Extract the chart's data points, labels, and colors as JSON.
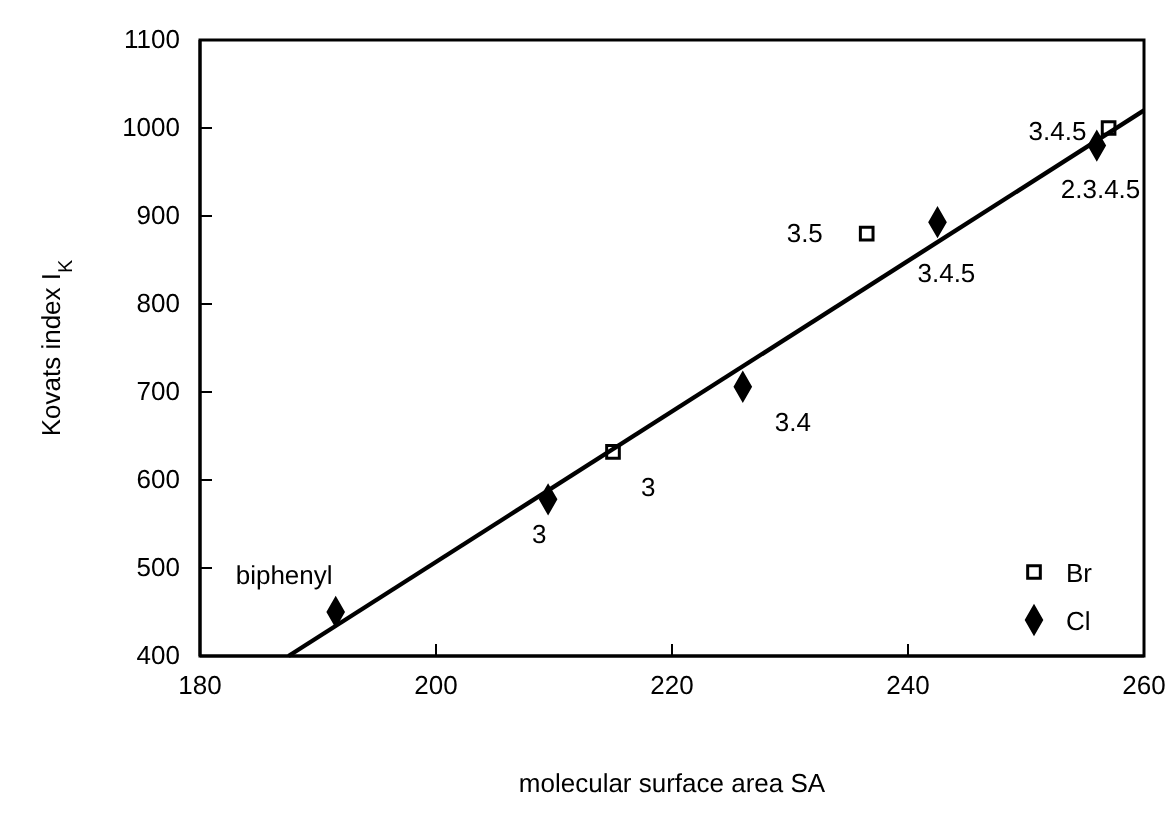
{
  "chart_data": {
    "type": "scatter",
    "xlabel": "molecular surface area SA",
    "ylabel": "Kovats index I$_{K}$",
    "xlim": [
      180,
      260
    ],
    "xticks": [
      180,
      200,
      220,
      240,
      260
    ],
    "ylim": [
      400,
      1100
    ],
    "yticks": [
      400,
      500,
      600,
      700,
      800,
      900,
      1000,
      1100
    ],
    "grid": false,
    "legend": "bottom right",
    "series": [
      {
        "name": "Br",
        "marker": "square",
        "color": "#000000",
        "x": [
          215,
          236.5,
          257
        ],
        "values": [
          632,
          880,
          1000
        ]
      },
      {
        "name": "Cl",
        "marker": "diamond",
        "color": "#000000",
        "x": [
          191.5,
          209.5,
          226,
          242.5,
          256
        ],
        "values": [
          450,
          578,
          706,
          893,
          980
        ]
      },
      {
        "type": "line",
        "color": "#000000",
        "x": [
          187.5,
          260
        ],
        "values": [
          400,
          1020
        ]
      }
    ],
    "annotations": [
      {
        "text": "biphenyl",
        "x": 191.5,
        "y": 450
      },
      {
        "text": "3",
        "x": 209.5,
        "y": 578
      },
      {
        "text": "3",
        "x": 215,
        "y": 632
      },
      {
        "text": "3.4",
        "x": 226,
        "y": 706
      },
      {
        "text": "3.5",
        "x": 236.5,
        "y": 880
      },
      {
        "text": "3.4.5",
        "x": 242.5,
        "y": 893
      },
      {
        "text": "3.4.5",
        "x": 257,
        "y": 1000
      },
      {
        "text": "2.3.4.5",
        "x": 256,
        "y": 980
      }
    ]
  }
}
